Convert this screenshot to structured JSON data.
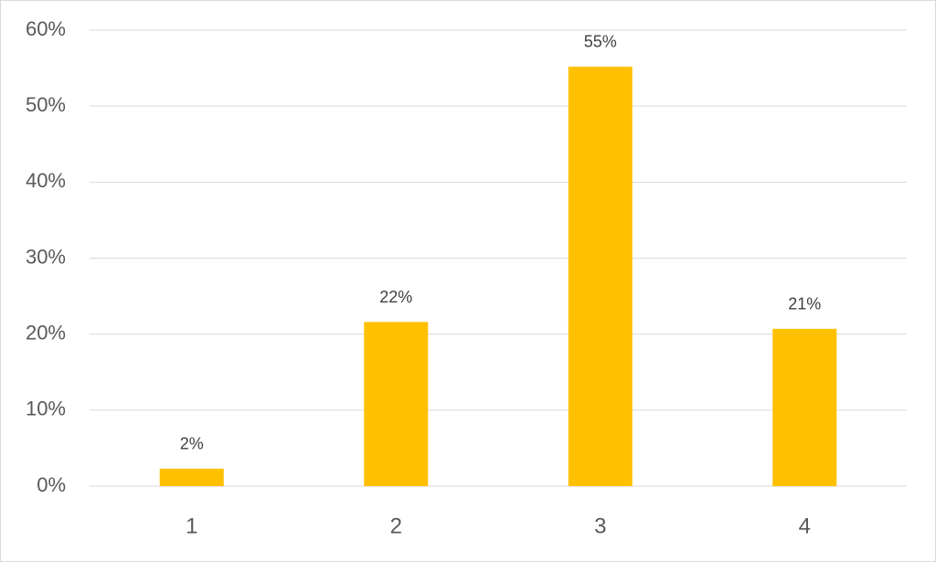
{
  "chart_data": {
    "type": "bar",
    "categories": [
      "1",
      "2",
      "3",
      "4"
    ],
    "values": [
      2.3,
      21.6,
      55.2,
      20.7
    ],
    "value_labels": [
      "2%",
      "22%",
      "55%",
      "21%"
    ],
    "color": "#ffc000",
    "ylim": [
      0,
      60
    ],
    "yticks": [
      {
        "value": 0,
        "label": "0%"
      },
      {
        "value": 10,
        "label": "10%"
      },
      {
        "value": 20,
        "label": "20%"
      },
      {
        "value": 30,
        "label": "30%"
      },
      {
        "value": 40,
        "label": "40%"
      },
      {
        "value": 50,
        "label": "50%"
      },
      {
        "value": 60,
        "label": "60%"
      }
    ],
    "grid": true
  }
}
